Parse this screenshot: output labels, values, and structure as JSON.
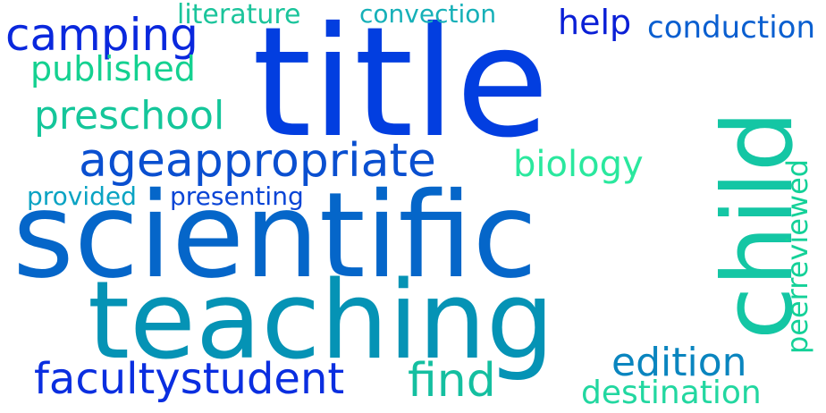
{
  "words": [
    {
      "key": "title",
      "text": "title",
      "color": "#023ee0"
    },
    {
      "key": "scientific",
      "text": "scientific",
      "color": "#0566c9"
    },
    {
      "key": "teaching",
      "text": "teaching",
      "color": "#0593b5"
    },
    {
      "key": "child",
      "text": "child",
      "color": "#14c6a4"
    },
    {
      "key": "ageappropriate",
      "text": "ageappropriate",
      "color": "#0a4fd0"
    },
    {
      "key": "facultystudent",
      "text": "facultystudent",
      "color": "#0a2ee0"
    },
    {
      "key": "camping",
      "text": "camping",
      "color": "#0a28dd"
    },
    {
      "key": "preschool",
      "text": "preschool",
      "color": "#14c69a"
    },
    {
      "key": "published",
      "text": "published",
      "color": "#14d190"
    },
    {
      "key": "literature",
      "text": "literature",
      "color": "#1bc49b"
    },
    {
      "key": "convection",
      "text": "convection",
      "color": "#16b0b8"
    },
    {
      "key": "help",
      "text": "help",
      "color": "#0a1fd6"
    },
    {
      "key": "conduction",
      "text": "conduction",
      "color": "#0a5fd0"
    },
    {
      "key": "biology",
      "text": "biology",
      "color": "#2ae89e"
    },
    {
      "key": "provided",
      "text": "provided",
      "color": "#0aa3c3"
    },
    {
      "key": "presenting",
      "text": "presenting",
      "color": "#0a45d6"
    },
    {
      "key": "find",
      "text": "find",
      "color": "#14bfa0"
    },
    {
      "key": "edition",
      "text": "edition",
      "color": "#0a85bf"
    },
    {
      "key": "destination",
      "text": "destination",
      "color": "#22d7a0"
    },
    {
      "key": "peerreviewed",
      "text": "peerreviewed",
      "color": "#14d198"
    }
  ]
}
